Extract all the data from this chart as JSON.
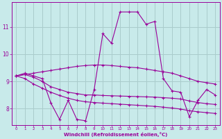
{
  "xlabel": "Windchill (Refroidissement éolien,°C)",
  "bg_color": "#c8eaea",
  "grid_color": "#aacccc",
  "line_color": "#990099",
  "y_ticks": [
    8,
    9,
    10,
    11
  ],
  "ylim": [
    7.4,
    11.9
  ],
  "xlim": [
    -0.5,
    23.5
  ],
  "series_zigzag": [
    9.2,
    9.3,
    9.2,
    9.1,
    8.2,
    7.6,
    8.3,
    7.6,
    7.55,
    8.7,
    10.75,
    10.4,
    11.55,
    11.55,
    11.55,
    11.1,
    11.2,
    9.1,
    8.65,
    8.6,
    7.7,
    8.3,
    8.7,
    8.5
  ],
  "series_upper": [
    9.2,
    9.25,
    9.3,
    9.35,
    9.4,
    9.45,
    9.5,
    9.55,
    9.58,
    9.6,
    9.6,
    9.58,
    9.55,
    9.52,
    9.5,
    9.45,
    9.4,
    9.35,
    9.3,
    9.2,
    9.1,
    9.0,
    8.95,
    8.9
  ],
  "series_lower1": [
    9.2,
    9.25,
    9.15,
    9.0,
    8.8,
    8.7,
    8.6,
    8.55,
    8.5,
    8.5,
    8.48,
    8.47,
    8.46,
    8.45,
    8.44,
    8.43,
    8.42,
    8.4,
    8.38,
    8.35,
    8.28,
    8.22,
    8.18,
    8.15
  ],
  "series_lower2": [
    9.2,
    9.1,
    8.9,
    8.75,
    8.6,
    8.48,
    8.38,
    8.3,
    8.25,
    8.22,
    8.2,
    8.18,
    8.16,
    8.14,
    8.12,
    8.1,
    8.08,
    8.05,
    8.02,
    7.98,
    7.92,
    7.88,
    7.85,
    7.82
  ]
}
